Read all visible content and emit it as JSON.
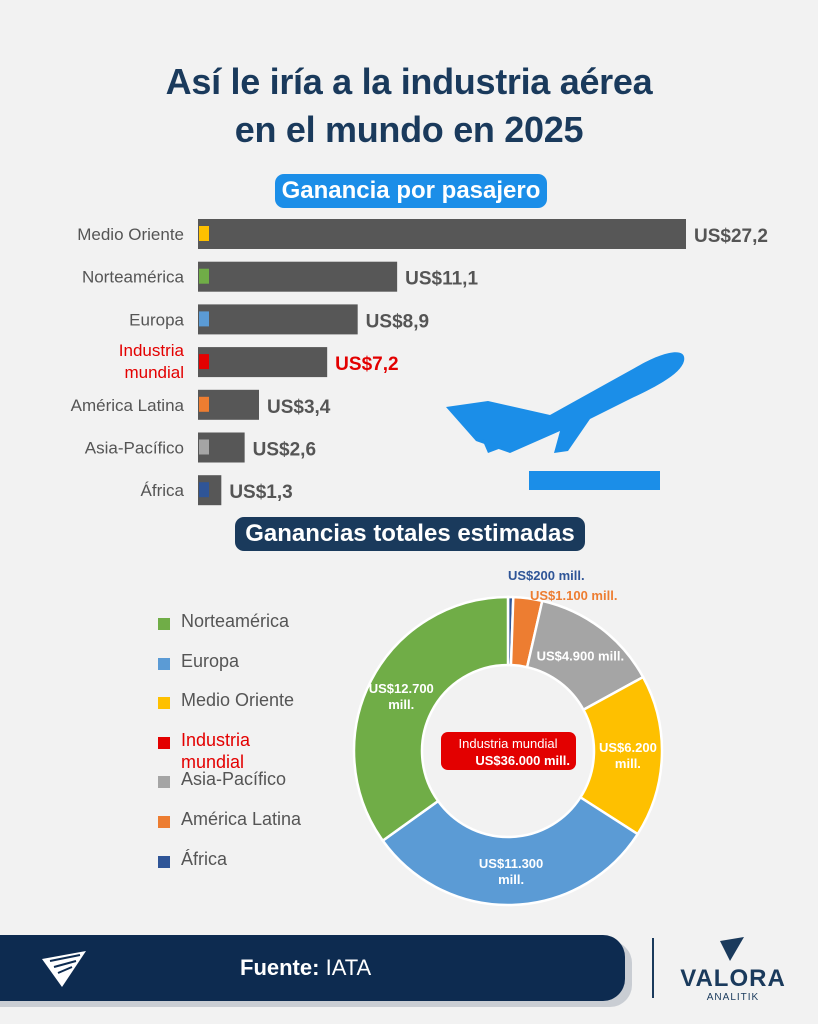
{
  "title": {
    "line1": "Así le iría a la industria aérea",
    "line2": "en el mundo en 2025"
  },
  "colors": {
    "navy": "#1a3a5c",
    "blue": "#1b8ee8",
    "bar": "#575757",
    "highlight": "#e30000"
  },
  "chart_data": [
    {
      "type": "bar",
      "orientation": "horizontal",
      "title": "Ganancia por pasajero",
      "unit": "US$",
      "categories": [
        "Medio Oriente",
        "Norteamérica",
        "Europa",
        "Industria mundial",
        "América Latina",
        "Asia-Pacífico",
        "África"
      ],
      "label_lines": [
        [
          "Medio Oriente"
        ],
        [
          "Norteamérica"
        ],
        [
          "Europa"
        ],
        [
          "Industria",
          "mundial"
        ],
        [
          "América Latina"
        ],
        [
          "Asia-Pacífico"
        ],
        [
          "África"
        ]
      ],
      "values": [
        27.2,
        11.1,
        8.9,
        7.2,
        3.4,
        2.6,
        1.3
      ],
      "value_labels": [
        "US$27,2",
        "US$11,1",
        "US$8,9",
        "US$7,2",
        "US$3,4",
        "US$2,6",
        "US$1,3"
      ],
      "marker_colors": [
        "#fec000",
        "#70ad47",
        "#5b9bd5",
        "#e30000",
        "#ed7d31",
        "#a5a5a5",
        "#2f5597"
      ],
      "highlight_index": 3
    },
    {
      "type": "pie",
      "style": "donut",
      "title": "Ganancias totales estimadas",
      "unit": "US$ millones",
      "slices": [
        {
          "name": "África",
          "value": 200,
          "label": "US$200 mill.",
          "color": "#2f5597"
        },
        {
          "name": "América Latina",
          "value": 1100,
          "label": "US$1.100 mill.",
          "color": "#ed7d31"
        },
        {
          "name": "Asia-Pacífico",
          "value": 4900,
          "label": "US$4.900 mill.",
          "color": "#a5a5a5"
        },
        {
          "name": "Medio Oriente",
          "value": 6200,
          "label": "US$6.200 mill.",
          "color": "#fec000"
        },
        {
          "name": "Europa",
          "value": 11300,
          "label": "US$11.300 mill.",
          "color": "#5b9bd5"
        },
        {
          "name": "Norteamérica",
          "value": 12700,
          "label": "US$12.700 mill.",
          "color": "#70ad47"
        }
      ],
      "center": {
        "line1": "Industria mundial",
        "line2": "US$36.000 mill.",
        "color": "#e30000"
      },
      "legend": [
        {
          "label": "Norteamérica",
          "color": "#70ad47"
        },
        {
          "label": "Europa",
          "color": "#5b9bd5"
        },
        {
          "label": "Medio Oriente",
          "color": "#fec000"
        },
        {
          "label": "Industria mundial",
          "label_lines": [
            "Industria",
            "mundial"
          ],
          "color": "#e30000",
          "highlight": true
        },
        {
          "label": "Asia-Pacífico",
          "color": "#a5a5a5"
        },
        {
          "label": "América Latina",
          "color": "#ed7d31"
        },
        {
          "label": "África",
          "color": "#2f5597"
        }
      ]
    }
  ],
  "footer": {
    "source_label": "Fuente:",
    "source_value": "IATA"
  },
  "brand": {
    "name": "VALORA",
    "sub": "ANALITIK"
  },
  "icons": {
    "plane": "airplane-takeoff-icon",
    "logo": "valora-logo-icon"
  }
}
